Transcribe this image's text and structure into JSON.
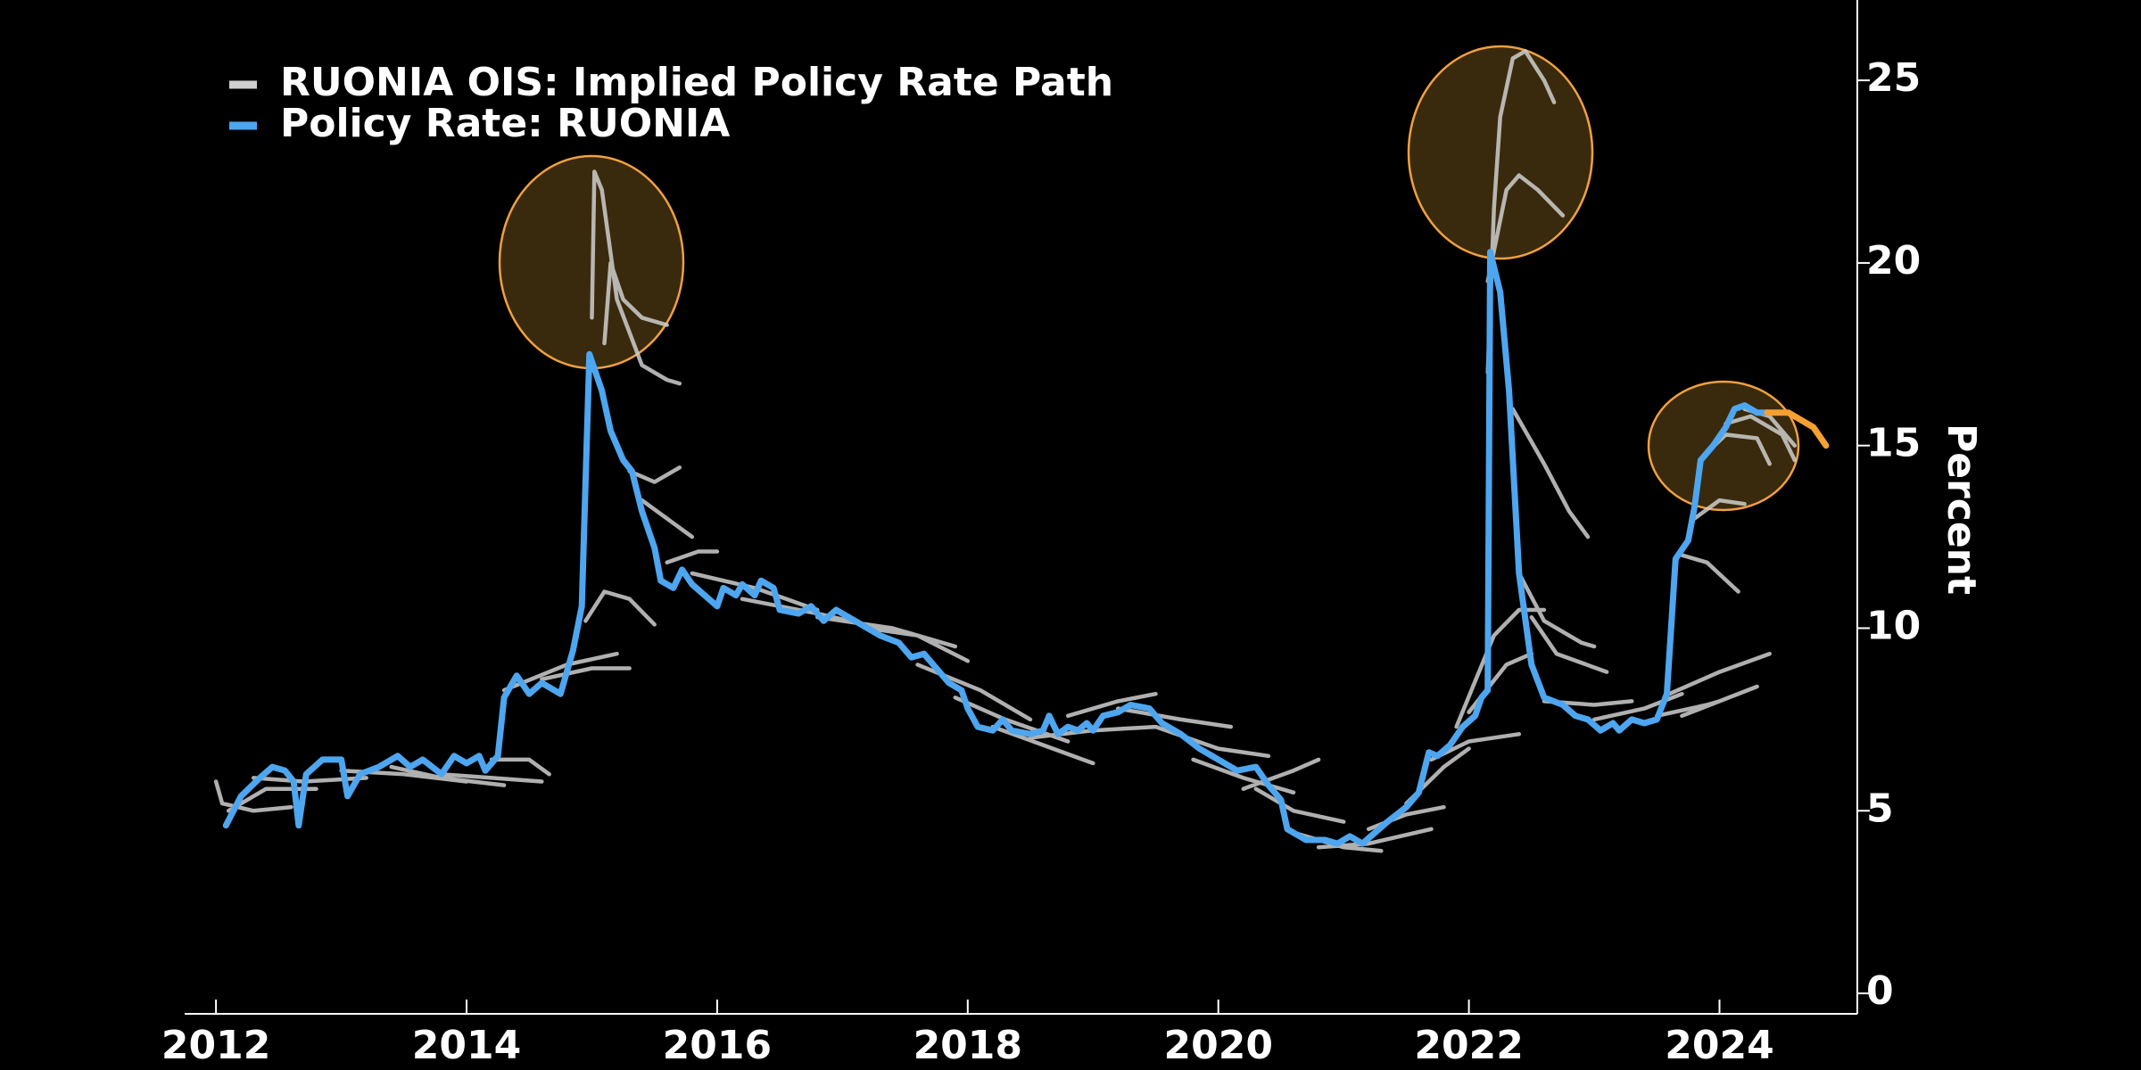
{
  "chart_data": {
    "type": "line",
    "y_axis_label": "Percent",
    "xlim": [
      2011.75,
      2025.1
    ],
    "ylim": [
      -0.56,
      27.2
    ],
    "xticks": [
      2012,
      2014,
      2016,
      2018,
      2020,
      2022,
      2024
    ],
    "yticks": [
      0,
      5,
      10,
      15,
      20,
      25
    ],
    "series": [
      {
        "name": "RUONIA OIS: Implied Policy Rate Path",
        "color": "#cfcfcf",
        "x": [
          2012.0,
          2012.05,
          2012.3,
          2012.6,
          null,
          2012.1,
          2012.4,
          2012.8,
          null,
          2012.3,
          2012.7,
          2013.2,
          null,
          2013.0,
          2013.5,
          2014.0,
          null,
          2013.4,
          2013.8,
          2014.3,
          null,
          2013.8,
          2014.2,
          2014.6,
          null,
          2014.2,
          2014.5,
          2014.66,
          null,
          2014.3,
          2014.8,
          2015.2,
          null,
          2014.6,
          2015.0,
          2015.3,
          null,
          2014.95,
          2015.1,
          2015.3,
          2015.5,
          null,
          2015.0,
          2015.02,
          2015.08,
          2015.2,
          2015.4,
          2015.6,
          2015.7,
          null,
          2015.1,
          2015.15,
          2015.25,
          2015.4,
          2015.6,
          null,
          2015.3,
          2015.5,
          2015.7,
          null,
          2015.4,
          2015.6,
          2015.8,
          null,
          2015.6,
          2015.85,
          2016.0,
          null,
          2015.8,
          2016.3,
          2016.8,
          null,
          2016.2,
          2016.8,
          2017.3,
          null,
          2016.8,
          2017.4,
          2017.9,
          null,
          2017.2,
          2017.6,
          2018.0,
          null,
          2017.6,
          2018.1,
          2018.5,
          null,
          2017.9,
          2018.3,
          2018.8,
          null,
          2018.2,
          2018.6,
          2019.0,
          null,
          2018.5,
          2019.0,
          2019.5,
          null,
          2018.8,
          2019.2,
          2019.5,
          null,
          2019.2,
          2019.7,
          2020.1,
          null,
          2019.5,
          2020.0,
          2020.4,
          null,
          2019.8,
          2020.2,
          2020.6,
          null,
          2020.2,
          2020.6,
          2020.8,
          null,
          2020.3,
          2020.6,
          2021.0,
          null,
          2020.6,
          2021.0,
          2021.3,
          null,
          2020.8,
          2021.2,
          2021.7,
          null,
          2021.2,
          2021.5,
          2021.8,
          null,
          2021.5,
          2021.8,
          2022.0,
          null,
          2021.7,
          2022.0,
          2022.4,
          null,
          2021.9,
          2022.2,
          2022.4,
          2022.6,
          null,
          2022.0,
          2022.3,
          2022.5,
          null,
          2022.15,
          2022.2,
          2022.25,
          2022.35,
          2022.45,
          2022.6,
          2022.68,
          null,
          2022.15,
          2022.3,
          2022.4,
          2022.55,
          2022.75,
          null,
          2022.35,
          2022.6,
          2022.8,
          2022.95,
          null,
          2022.4,
          2022.6,
          2022.9,
          2023.0,
          null,
          2022.5,
          2022.7,
          2023.1,
          null,
          2022.6,
          2023.0,
          2023.3,
          null,
          2023.0,
          2023.4,
          2023.7,
          null,
          2023.5,
          2023.9,
          2024.0,
          null,
          2023.6,
          2024.0,
          2024.4,
          null,
          2023.7,
          2024.0,
          2024.3,
          null,
          2023.7,
          2023.9,
          2024.15,
          null,
          2023.8,
          2024.0,
          2024.2,
          null,
          2023.9,
          2024.05,
          2024.3,
          2024.4,
          null,
          2024.05,
          2024.25,
          2024.5,
          2024.6,
          null,
          2024.2,
          2024.4,
          2024.6
        ],
        "values": [
          5.8,
          5.2,
          5.0,
          5.1,
          null,
          5.0,
          5.6,
          5.6,
          null,
          5.9,
          5.8,
          5.9,
          null,
          6.1,
          6.0,
          5.8,
          null,
          6.2,
          5.9,
          5.7,
          null,
          6.0,
          5.9,
          5.8,
          null,
          6.4,
          6.4,
          6.0,
          null,
          8.3,
          9.0,
          9.3,
          null,
          8.6,
          8.9,
          8.9,
          null,
          10.2,
          11.0,
          10.8,
          10.1,
          null,
          18.5,
          22.5,
          22.0,
          19.0,
          17.2,
          16.8,
          16.7,
          null,
          17.8,
          20.0,
          19.0,
          18.5,
          18.3,
          null,
          14.3,
          14.0,
          14.4,
          null,
          13.5,
          13.0,
          12.5,
          null,
          11.8,
          12.1,
          12.1,
          null,
          11.5,
          11.1,
          10.5,
          null,
          10.8,
          10.4,
          10.0,
          null,
          10.3,
          10.0,
          9.5,
          null,
          10.0,
          9.8,
          9.1,
          null,
          9.0,
          8.3,
          7.5,
          null,
          8.1,
          7.5,
          6.9,
          null,
          7.3,
          6.8,
          6.3,
          null,
          7.0,
          7.2,
          7.3,
          null,
          7.6,
          8.0,
          8.2,
          null,
          7.8,
          7.5,
          7.3,
          null,
          7.3,
          6.7,
          6.5,
          null,
          6.4,
          5.9,
          5.5,
          null,
          5.6,
          6.1,
          6.4,
          null,
          5.6,
          5.0,
          4.7,
          null,
          4.4,
          4.0,
          3.9,
          null,
          4.0,
          4.1,
          4.5,
          null,
          4.5,
          4.9,
          5.1,
          null,
          5.2,
          6.2,
          6.7,
          null,
          6.4,
          6.9,
          7.1,
          null,
          7.3,
          9.8,
          10.5,
          10.5,
          null,
          7.7,
          9.0,
          9.3,
          null,
          17.0,
          21.5,
          24.0,
          25.6,
          25.8,
          25.0,
          24.4,
          null,
          19.5,
          22.0,
          22.4,
          22.0,
          21.3,
          null,
          16.0,
          14.5,
          13.2,
          12.5,
          null,
          11.5,
          10.2,
          9.6,
          9.5,
          null,
          10.3,
          9.3,
          8.8,
          null,
          8.0,
          7.9,
          8.0,
          null,
          7.5,
          7.8,
          8.2,
          null,
          7.6,
          7.9,
          8.0,
          null,
          8.2,
          8.8,
          9.3,
          null,
          7.6,
          8.0,
          8.4,
          null,
          12.0,
          11.8,
          11.0,
          null,
          13.0,
          13.5,
          13.4,
          null,
          14.8,
          15.3,
          15.2,
          14.5,
          null,
          15.6,
          15.8,
          15.3,
          14.6,
          null,
          16.0,
          15.8,
          15.0
        ]
      },
      {
        "name": "Policy Rate: RUONIA",
        "color": "#4da6ef",
        "x": [
          2012.08,
          2012.2,
          2012.35,
          2012.45,
          2012.55,
          2012.62,
          2012.66,
          2012.72,
          2012.85,
          2013.0,
          2013.05,
          2013.15,
          2013.3,
          2013.45,
          2013.55,
          2013.65,
          2013.8,
          2013.9,
          2014.0,
          2014.1,
          2014.15,
          2014.25,
          2014.3,
          2014.4,
          2014.5,
          2014.6,
          2014.75,
          2014.85,
          2014.92,
          2014.98,
          2015.08,
          2015.15,
          2015.25,
          2015.32,
          2015.4,
          2015.5,
          2015.55,
          2015.65,
          2015.72,
          2015.8,
          2015.9,
          2016.0,
          2016.05,
          2016.15,
          2016.2,
          2016.3,
          2016.35,
          2016.45,
          2016.5,
          2016.65,
          2016.75,
          2016.85,
          2016.95,
          2017.1,
          2017.3,
          2017.45,
          2017.55,
          2017.65,
          2017.75,
          2017.85,
          2017.95,
          2018.0,
          2018.08,
          2018.2,
          2018.28,
          2018.35,
          2018.5,
          2018.6,
          2018.65,
          2018.72,
          2018.8,
          2018.88,
          2018.95,
          2019.0,
          2019.08,
          2019.2,
          2019.3,
          2019.45,
          2019.55,
          2019.7,
          2019.85,
          2019.95,
          2020.05,
          2020.15,
          2020.3,
          2020.4,
          2020.5,
          2020.55,
          2020.7,
          2020.85,
          2020.95,
          2021.05,
          2021.15,
          2021.25,
          2021.35,
          2021.5,
          2021.6,
          2021.68,
          2021.75,
          2021.85,
          2021.95,
          2022.05,
          2022.1,
          2022.15,
          2022.17,
          2022.25,
          2022.32,
          2022.4,
          2022.5,
          2022.6,
          2022.75,
          2022.85,
          2022.95,
          2023.05,
          2023.15,
          2023.2,
          2023.3,
          2023.4,
          2023.5,
          2023.58,
          2023.65,
          2023.75,
          2023.8,
          2023.85,
          2023.95,
          2024.05,
          2024.12,
          2024.2,
          2024.3,
          2024.38
        ],
        "values": [
          4.6,
          5.4,
          5.9,
          6.2,
          6.1,
          5.8,
          4.6,
          6.0,
          6.4,
          6.4,
          5.4,
          6.0,
          6.2,
          6.5,
          6.2,
          6.4,
          6.0,
          6.5,
          6.3,
          6.5,
          6.1,
          6.5,
          8.1,
          8.7,
          8.2,
          8.5,
          8.2,
          9.4,
          10.6,
          17.5,
          16.5,
          15.4,
          14.6,
          14.3,
          13.2,
          12.2,
          11.3,
          11.1,
          11.6,
          11.2,
          10.9,
          10.6,
          11.1,
          10.9,
          11.2,
          10.9,
          11.3,
          11.1,
          10.5,
          10.4,
          10.6,
          10.2,
          10.5,
          10.2,
          9.8,
          9.6,
          9.2,
          9.3,
          8.9,
          8.5,
          8.3,
          7.8,
          7.3,
          7.2,
          7.5,
          7.2,
          7.1,
          7.2,
          7.6,
          7.1,
          7.3,
          7.2,
          7.4,
          7.2,
          7.6,
          7.7,
          7.9,
          7.8,
          7.4,
          7.1,
          6.7,
          6.5,
          6.3,
          6.1,
          6.2,
          5.7,
          5.3,
          4.5,
          4.2,
          4.2,
          4.1,
          4.3,
          4.1,
          4.4,
          4.7,
          5.1,
          5.5,
          6.6,
          6.5,
          6.8,
          7.3,
          7.6,
          8.1,
          8.3,
          20.3,
          19.2,
          16.5,
          11.5,
          9.0,
          8.1,
          7.9,
          7.6,
          7.5,
          7.2,
          7.4,
          7.2,
          7.5,
          7.4,
          7.5,
          8.2,
          11.9,
          12.4,
          13.3,
          14.6,
          15.0,
          15.5,
          16.0,
          16.1,
          15.9,
          15.9
        ]
      },
      {
        "color": "#f5a030",
        "x": [
          2024.38,
          2024.55,
          2024.75,
          2024.85
        ],
        "values": [
          15.9,
          15.9,
          15.5,
          15.0
        ]
      }
    ]
  }
}
